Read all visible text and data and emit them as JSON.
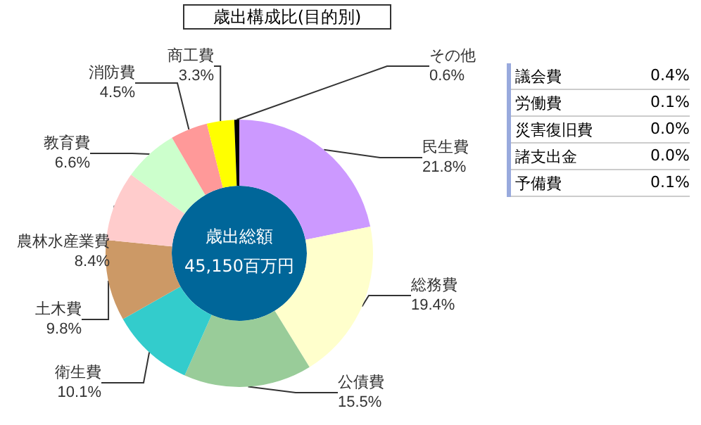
{
  "chart_data": {
    "type": "donut",
    "title": "歳出構成比(目的別)",
    "categories": [
      "民生費",
      "総務費",
      "公債費",
      "衛生費",
      "土木費",
      "農林水産業費",
      "教育費",
      "消防費",
      "商工費",
      "その他"
    ],
    "values": [
      21.8,
      19.4,
      15.5,
      10.1,
      9.8,
      8.4,
      6.6,
      4.5,
      3.3,
      0.6
    ],
    "value_labels": [
      "21.8%",
      "19.4%",
      "15.5%",
      "10.1%",
      "9.8%",
      "8.4%",
      "6.6%",
      "4.5%",
      "3.3%",
      "0.6%"
    ],
    "colors": [
      "#cc99ff",
      "#ffffcc",
      "#99cc99",
      "#33cccc",
      "#cc9966",
      "#ffcccc",
      "#ccffcc",
      "#ff9999",
      "#ffff00",
      "#000000"
    ],
    "legend": false,
    "annotations": [
      "歳出総額",
      "45,150百万円",
      "議会費",
      "0.4%",
      "労働費",
      "0.1%",
      "災害復旧費",
      "0.0%",
      "諸支出金",
      "0.0%",
      "予備費",
      "0.1%"
    ]
  }
}
